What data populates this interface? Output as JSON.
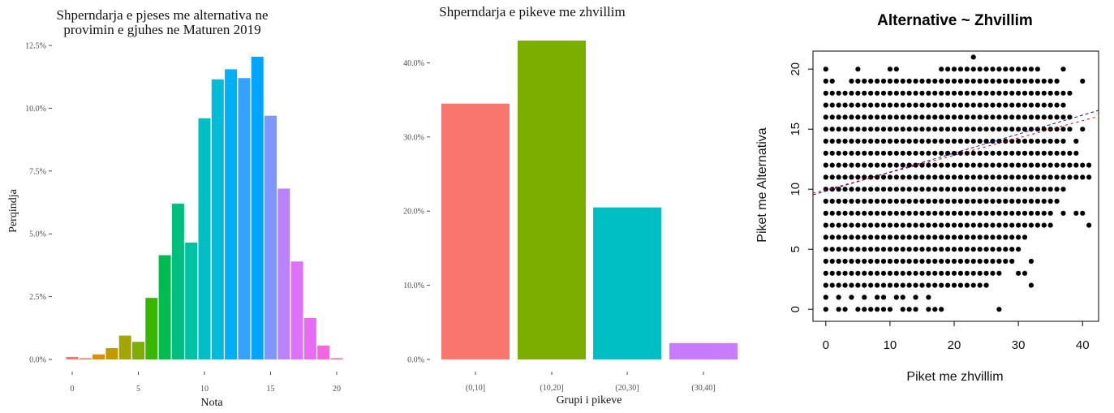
{
  "chart_data": [
    {
      "type": "bar",
      "title_lines": [
        "Shperndarja e pjeses me alternativa ne",
        "provimin e gjuhes ne Maturen 2019"
      ],
      "xlabel": "Nota",
      "ylabel": "Perqindja",
      "x": [
        0,
        1,
        2,
        3,
        4,
        5,
        6,
        7,
        8,
        9,
        10,
        11,
        12,
        13,
        14,
        15,
        16,
        17,
        18,
        19,
        20
      ],
      "values": [
        0.1,
        0.05,
        0.2,
        0.45,
        0.95,
        0.7,
        2.45,
        4.15,
        6.2,
        4.65,
        9.6,
        11.15,
        11.55,
        11.2,
        12.05,
        9.7,
        6.8,
        3.9,
        1.65,
        0.55,
        0.05
      ],
      "colors": [
        "#F8766D",
        "#EF7F49",
        "#D89000",
        "#BF9B00",
        "#A3A500",
        "#7CAE00",
        "#39B600",
        "#00BB4E",
        "#00BF7D",
        "#00C1A3",
        "#00BFC4",
        "#00BBDA",
        "#00B0F6",
        "#35A2FF",
        "#00A5FF",
        "#7F96FF",
        "#B983FF",
        "#DC71FA",
        "#E76BF3",
        "#F564E3",
        "#FF6C91"
      ],
      "ylim": [
        0,
        12.5
      ],
      "yticks": [
        "0.0%",
        "2.5%",
        "5.0%",
        "7.5%",
        "10.0%",
        "12.5%"
      ],
      "xticks": [
        "0",
        "5",
        "10",
        "15",
        "20"
      ]
    },
    {
      "type": "bar",
      "title": "Shperndarja e pikeve me zhvillim",
      "xlabel": "Grupi i pikeve",
      "ylabel": "",
      "categories": [
        "(0,10]",
        "(10,20]",
        "(20,30]",
        "(30,40]"
      ],
      "values": [
        34.5,
        43.0,
        20.5,
        2.2
      ],
      "colors": [
        "#F8766D",
        "#7CAE00",
        "#00BFC4",
        "#C77CFF"
      ],
      "ylim": [
        0,
        43
      ],
      "yticks": [
        "0.0%",
        "10.0%",
        "20.0%",
        "30.0%",
        "40.0%"
      ]
    },
    {
      "type": "scatter",
      "title": "Alternative ~ Zhvillim",
      "xlabel": "Piket me zhvillim",
      "ylabel": "Piket me Alternativa",
      "xlim": [
        -2,
        42.5
      ],
      "ylim": [
        -1,
        21.5
      ],
      "xticks": [
        "0",
        "10",
        "20",
        "30",
        "40"
      ],
      "yticks": [
        "0",
        "5",
        "10",
        "15",
        "20"
      ],
      "grid": false,
      "fit_lines": [
        {
          "color": "#1a1a8c",
          "dash": "4,3",
          "intercept": 9.85,
          "slope": 0.158
        },
        {
          "color": "#cc0000",
          "dash": "3,4",
          "intercept": 9.95,
          "slope": 0.144
        }
      ],
      "rows": [
        {
          "y": 0,
          "xs": [
            0,
            2,
            3,
            5,
            6,
            7,
            8,
            9,
            10,
            12,
            13,
            14,
            16,
            17,
            18,
            27
          ]
        },
        {
          "y": 1,
          "xs": [
            0,
            2,
            4,
            6,
            8,
            9,
            11,
            12,
            14,
            16
          ]
        },
        {
          "y": 2,
          "xs": [
            0,
            1,
            2,
            3,
            4,
            5,
            6,
            7,
            8,
            9,
            10,
            11,
            12,
            13,
            14,
            15,
            16,
            17,
            18,
            19,
            20,
            21,
            22,
            23,
            24,
            25,
            32
          ]
        },
        {
          "y": 3,
          "xs": [
            0,
            1,
            2,
            3,
            4,
            5,
            6,
            7,
            8,
            9,
            10,
            11,
            12,
            13,
            14,
            15,
            16,
            17,
            18,
            19,
            20,
            21,
            22,
            23,
            24,
            25,
            26,
            27,
            30,
            31
          ]
        },
        {
          "y": 4,
          "xs": [
            0,
            1,
            2,
            3,
            4,
            5,
            6,
            7,
            8,
            9,
            10,
            11,
            12,
            13,
            14,
            15,
            16,
            17,
            18,
            19,
            20,
            21,
            22,
            23,
            24,
            25,
            26,
            27,
            28,
            29,
            32
          ]
        },
        {
          "y": 5,
          "xs": [
            0,
            1,
            2,
            3,
            4,
            5,
            6,
            7,
            8,
            9,
            10,
            11,
            12,
            13,
            14,
            15,
            16,
            17,
            18,
            19,
            20,
            21,
            22,
            23,
            24,
            25,
            26,
            27,
            28,
            29,
            30
          ]
        },
        {
          "y": 6,
          "xs": [
            0,
            1,
            2,
            3,
            4,
            5,
            6,
            7,
            8,
            9,
            10,
            11,
            12,
            13,
            14,
            15,
            16,
            17,
            18,
            19,
            20,
            21,
            22,
            23,
            24,
            25,
            26,
            27,
            28,
            29,
            30,
            31
          ]
        },
        {
          "y": 7,
          "xs": [
            0,
            1,
            2,
            3,
            4,
            5,
            6,
            7,
            8,
            9,
            10,
            11,
            12,
            13,
            14,
            15,
            16,
            17,
            18,
            19,
            20,
            21,
            22,
            23,
            24,
            25,
            26,
            27,
            28,
            29,
            30,
            31,
            32,
            33,
            34,
            35,
            41
          ]
        },
        {
          "y": 8,
          "xs": [
            0,
            1,
            2,
            3,
            4,
            5,
            6,
            7,
            8,
            9,
            10,
            11,
            12,
            13,
            14,
            15,
            16,
            17,
            18,
            19,
            20,
            21,
            22,
            23,
            24,
            25,
            26,
            27,
            28,
            29,
            30,
            31,
            32,
            33,
            34,
            35,
            37,
            39,
            40
          ]
        },
        {
          "y": 9,
          "xs": [
            0,
            1,
            2,
            3,
            4,
            5,
            6,
            7,
            8,
            9,
            10,
            11,
            12,
            13,
            14,
            15,
            16,
            17,
            18,
            19,
            20,
            21,
            22,
            23,
            24,
            25,
            26,
            27,
            28,
            29,
            30,
            31,
            32,
            33,
            34,
            35,
            36
          ]
        },
        {
          "y": 10,
          "xs": [
            0,
            1,
            2,
            3,
            4,
            5,
            6,
            7,
            8,
            9,
            10,
            11,
            12,
            13,
            14,
            15,
            16,
            17,
            18,
            19,
            20,
            21,
            22,
            23,
            24,
            25,
            26,
            27,
            28,
            29,
            30,
            31,
            32,
            33,
            34,
            35,
            36,
            37
          ]
        },
        {
          "y": 11,
          "xs": [
            0,
            1,
            2,
            3,
            4,
            5,
            6,
            7,
            8,
            9,
            10,
            11,
            12,
            13,
            14,
            15,
            16,
            17,
            18,
            19,
            20,
            21,
            22,
            23,
            24,
            25,
            26,
            27,
            28,
            29,
            30,
            31,
            32,
            33,
            34,
            35,
            36,
            37,
            38,
            39,
            40,
            41
          ]
        },
        {
          "y": 12,
          "xs": [
            0,
            1,
            2,
            3,
            4,
            5,
            6,
            7,
            8,
            9,
            10,
            11,
            12,
            13,
            14,
            15,
            16,
            17,
            18,
            19,
            20,
            21,
            22,
            23,
            24,
            25,
            26,
            27,
            28,
            29,
            30,
            31,
            32,
            33,
            34,
            35,
            36,
            37,
            38,
            39,
            40,
            41
          ]
        },
        {
          "y": 13,
          "xs": [
            0,
            1,
            2,
            3,
            4,
            5,
            6,
            7,
            8,
            9,
            10,
            11,
            12,
            13,
            14,
            15,
            16,
            17,
            18,
            19,
            20,
            21,
            22,
            23,
            24,
            25,
            26,
            27,
            28,
            29,
            30,
            31,
            32,
            33,
            34,
            35,
            36,
            37,
            38,
            39
          ]
        },
        {
          "y": 14,
          "xs": [
            0,
            1,
            2,
            3,
            4,
            5,
            6,
            7,
            8,
            9,
            10,
            11,
            12,
            13,
            14,
            15,
            16,
            17,
            18,
            19,
            20,
            21,
            22,
            23,
            24,
            25,
            26,
            27,
            28,
            29,
            30,
            31,
            32,
            33,
            34,
            35,
            36,
            37,
            39
          ]
        },
        {
          "y": 15,
          "xs": [
            0,
            1,
            2,
            3,
            4,
            5,
            6,
            7,
            8,
            9,
            10,
            11,
            12,
            13,
            14,
            15,
            16,
            17,
            18,
            19,
            20,
            21,
            22,
            23,
            24,
            25,
            26,
            27,
            28,
            29,
            30,
            31,
            32,
            33,
            34,
            35,
            36,
            37,
            38,
            40
          ]
        },
        {
          "y": 16,
          "xs": [
            0,
            1,
            2,
            3,
            4,
            5,
            6,
            7,
            8,
            9,
            10,
            11,
            12,
            13,
            14,
            15,
            16,
            17,
            18,
            19,
            20,
            21,
            22,
            23,
            24,
            25,
            26,
            27,
            28,
            29,
            30,
            31,
            32,
            33,
            34,
            35,
            36,
            37,
            38
          ]
        },
        {
          "y": 17,
          "xs": [
            0,
            1,
            2,
            3,
            4,
            5,
            6,
            7,
            8,
            9,
            10,
            11,
            12,
            13,
            14,
            15,
            16,
            17,
            18,
            19,
            20,
            21,
            22,
            23,
            24,
            25,
            26,
            27,
            28,
            29,
            30,
            31,
            32,
            33,
            34,
            35,
            36,
            37
          ]
        },
        {
          "y": 18,
          "xs": [
            0,
            1,
            2,
            3,
            4,
            5,
            6,
            7,
            8,
            9,
            10,
            11,
            12,
            13,
            14,
            15,
            16,
            17,
            18,
            19,
            20,
            21,
            22,
            23,
            24,
            25,
            26,
            27,
            28,
            29,
            30,
            31,
            32,
            33,
            34,
            35,
            36,
            37,
            38
          ]
        },
        {
          "y": 19,
          "xs": [
            0,
            1,
            4,
            5,
            6,
            7,
            8,
            9,
            10,
            11,
            12,
            13,
            14,
            15,
            16,
            17,
            18,
            19,
            20,
            21,
            22,
            23,
            24,
            25,
            26,
            27,
            28,
            29,
            30,
            31,
            32,
            33,
            34,
            35,
            36,
            40
          ]
        },
        {
          "y": 20,
          "xs": [
            0,
            5,
            10,
            11,
            18,
            19,
            20,
            21,
            22,
            23,
            24,
            25,
            26,
            27,
            28,
            29,
            30,
            31,
            32,
            33,
            37
          ]
        },
        {
          "y": 21,
          "xs": [
            23
          ]
        }
      ]
    }
  ]
}
